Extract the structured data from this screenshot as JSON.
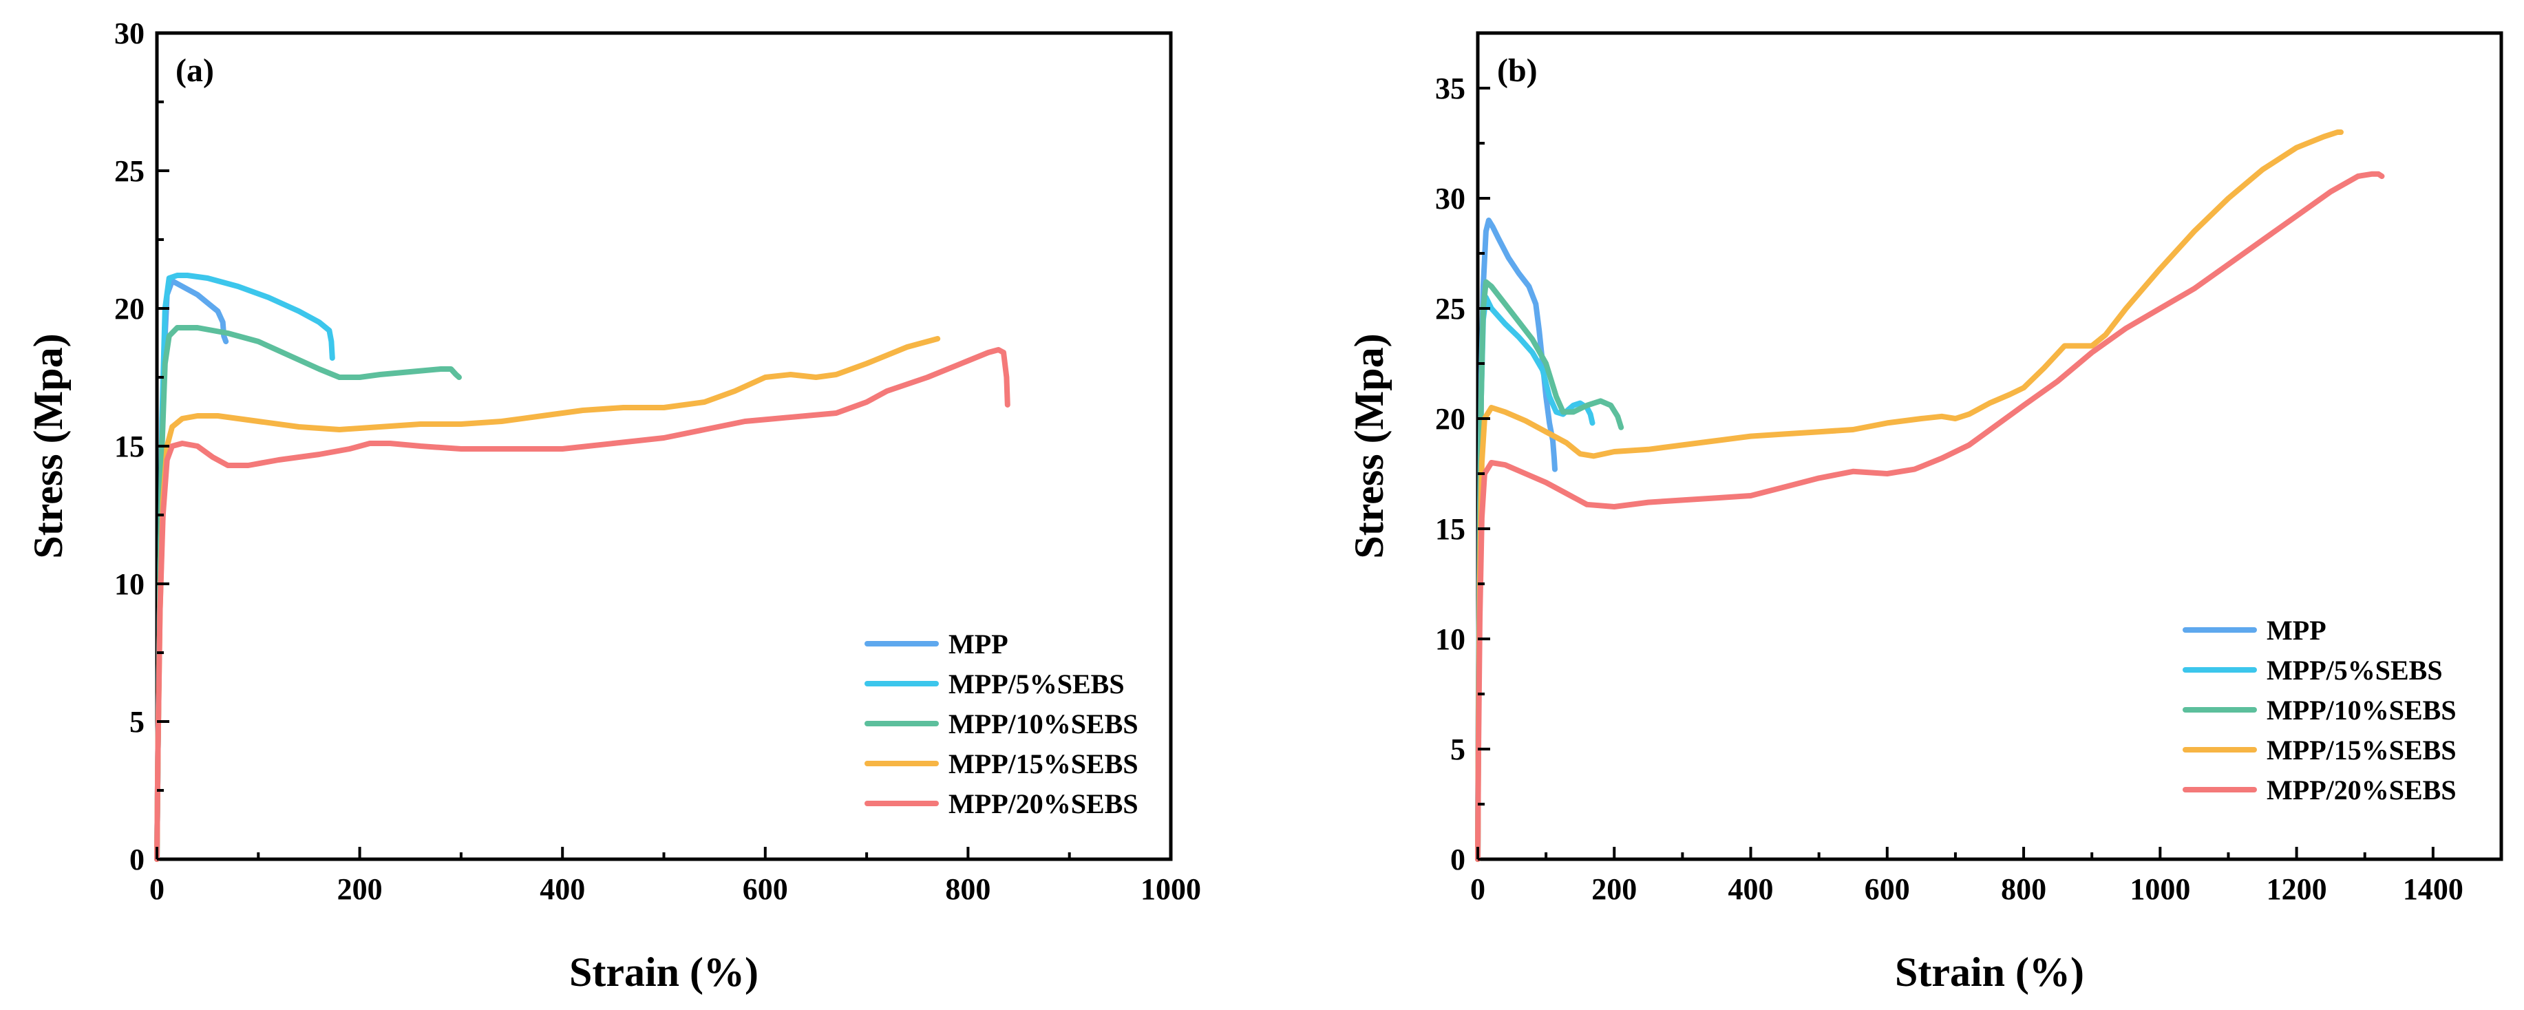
{
  "colors": {
    "MPP": "#5ea8ee",
    "MPP/5%SEBS": "#3cc6ec",
    "MPP/10%SEBS": "#5cbf9c",
    "MPP/15%SEBS": "#f7b544",
    "MPP/20%SEBS": "#f47979"
  },
  "chart_data": [
    {
      "type": "line",
      "panel_label": "(a)",
      "xlabel": "Strain (%)",
      "ylabel": "Stress (Mpa)",
      "xlim": [
        0,
        1000
      ],
      "ylim": [
        0,
        30
      ],
      "xticks": [
        0,
        200,
        400,
        600,
        800,
        1000
      ],
      "yticks": [
        0,
        5,
        10,
        15,
        20,
        25,
        30
      ],
      "legend_position": "bottom-right",
      "series": [
        {
          "name": "MPP",
          "x": [
            0,
            1,
            3,
            5,
            8,
            10,
            15,
            20,
            30,
            40,
            50,
            60,
            65,
            66,
            68
          ],
          "y": [
            0,
            4,
            10,
            15,
            19,
            20.5,
            21,
            20.9,
            20.7,
            20.5,
            20.2,
            19.9,
            19.5,
            19,
            18.8
          ]
        },
        {
          "name": "MPP/5%SEBS",
          "x": [
            0,
            1,
            3,
            5,
            8,
            12,
            20,
            30,
            50,
            80,
            110,
            140,
            160,
            170,
            172,
            173
          ],
          "y": [
            0,
            4,
            10,
            16,
            20,
            21.1,
            21.2,
            21.2,
            21.1,
            20.8,
            20.4,
            19.9,
            19.5,
            19.2,
            18.8,
            18.2
          ]
        },
        {
          "name": "MPP/10%SEBS",
          "x": [
            0,
            1,
            3,
            5,
            8,
            12,
            20,
            40,
            70,
            100,
            130,
            160,
            180,
            200,
            220,
            250,
            280,
            290,
            295,
            298
          ],
          "y": [
            0,
            4,
            10,
            15,
            18,
            19,
            19.3,
            19.3,
            19.1,
            18.8,
            18.3,
            17.8,
            17.5,
            17.5,
            17.6,
            17.7,
            17.8,
            17.8,
            17.6,
            17.5
          ]
        },
        {
          "name": "MPP/15%SEBS",
          "x": [
            0,
            1,
            3,
            6,
            10,
            15,
            25,
            40,
            60,
            100,
            140,
            180,
            220,
            260,
            300,
            340,
            380,
            420,
            460,
            500,
            540,
            570,
            600,
            625,
            650,
            670,
            700,
            740,
            760,
            770
          ],
          "y": [
            0,
            4,
            9,
            13,
            15,
            15.7,
            16,
            16.1,
            16.1,
            15.9,
            15.7,
            15.6,
            15.7,
            15.8,
            15.8,
            15.9,
            16.1,
            16.3,
            16.4,
            16.4,
            16.6,
            17,
            17.5,
            17.6,
            17.5,
            17.6,
            18,
            18.6,
            18.8,
            18.9
          ]
        },
        {
          "name": "MPP/20%SEBS",
          "x": [
            0,
            1,
            3,
            6,
            10,
            15,
            25,
            40,
            55,
            70,
            90,
            120,
            160,
            190,
            210,
            230,
            260,
            300,
            350,
            400,
            450,
            500,
            540,
            580,
            610,
            640,
            670,
            700,
            720,
            760,
            800,
            820,
            830,
            835,
            838,
            839
          ],
          "y": [
            0,
            4,
            9,
            12.5,
            14.5,
            15,
            15.1,
            15,
            14.6,
            14.3,
            14.3,
            14.5,
            14.7,
            14.9,
            15.1,
            15.1,
            15,
            14.9,
            14.9,
            14.9,
            15.1,
            15.3,
            15.6,
            15.9,
            16,
            16.1,
            16.2,
            16.6,
            17,
            17.5,
            18.1,
            18.4,
            18.5,
            18.4,
            17.5,
            16.5
          ]
        }
      ],
      "legend": [
        "MPP",
        "MPP/5%SEBS",
        "MPP/10%SEBS",
        "MPP/15%SEBS",
        "MPP/20%SEBS"
      ]
    },
    {
      "type": "line",
      "panel_label": "(b)",
      "xlabel": "Strain (%)",
      "ylabel": "Stress (Mpa)",
      "xlim": [
        0,
        1500
      ],
      "ylim": [
        0,
        37.5
      ],
      "xticks": [
        0,
        200,
        400,
        600,
        800,
        1000,
        1200,
        1400
      ],
      "yticks": [
        0,
        5,
        10,
        15,
        20,
        25,
        30,
        35
      ],
      "legend_position": "bottom-right",
      "series": [
        {
          "name": "MPP",
          "x": [
            0,
            1,
            3,
            5,
            8,
            12,
            16,
            22,
            30,
            45,
            60,
            75,
            85,
            90,
            95,
            100,
            105,
            110,
            112,
            113
          ],
          "y": [
            0,
            8,
            16,
            22,
            26,
            28.5,
            29,
            28.7,
            28.2,
            27.3,
            26.6,
            26,
            25.2,
            24,
            22.5,
            21,
            19.8,
            19,
            18.2,
            17.7
          ]
        },
        {
          "name": "MPP/5%SEBS",
          "x": [
            0,
            1,
            3,
            5,
            8,
            12,
            20,
            40,
            60,
            80,
            95,
            105,
            115,
            125,
            140,
            150,
            160,
            165,
            168
          ],
          "y": [
            0,
            7,
            15,
            21,
            24.5,
            25.5,
            25,
            24.3,
            23.7,
            23,
            22.2,
            21,
            20.3,
            20.2,
            20.6,
            20.7,
            20.5,
            20.2,
            19.8
          ]
        },
        {
          "name": "MPP/10%SEBS",
          "x": [
            0,
            1,
            3,
            5,
            8,
            12,
            20,
            40,
            60,
            80,
            100,
            115,
            125,
            140,
            160,
            180,
            195,
            205,
            210
          ],
          "y": [
            0,
            7,
            15,
            21,
            25,
            26.2,
            26,
            25.2,
            24.4,
            23.6,
            22.5,
            21,
            20.3,
            20.3,
            20.6,
            20.8,
            20.6,
            20.1,
            19.6
          ]
        },
        {
          "name": "MPP/15%SEBS",
          "x": [
            0,
            1,
            3,
            6,
            10,
            20,
            40,
            70,
            100,
            130,
            150,
            170,
            200,
            250,
            300,
            350,
            400,
            450,
            500,
            550,
            600,
            650,
            680,
            700,
            720,
            750,
            780,
            800,
            830,
            860,
            880,
            900,
            920,
            950,
            1000,
            1050,
            1100,
            1150,
            1200,
            1240,
            1260,
            1265
          ],
          "y": [
            0,
            6,
            13,
            18,
            20,
            20.5,
            20.3,
            19.9,
            19.4,
            18.9,
            18.4,
            18.3,
            18.5,
            18.6,
            18.8,
            19,
            19.2,
            19.3,
            19.4,
            19.5,
            19.8,
            20,
            20.1,
            20,
            20.2,
            20.7,
            21.1,
            21.4,
            22.3,
            23.3,
            23.3,
            23.3,
            23.8,
            25,
            26.8,
            28.5,
            30,
            31.3,
            32.3,
            32.8,
            33,
            33
          ]
        },
        {
          "name": "MPP/20%SEBS",
          "x": [
            0,
            1,
            3,
            6,
            10,
            20,
            40,
            70,
            100,
            130,
            160,
            200,
            250,
            300,
            350,
            400,
            450,
            500,
            550,
            600,
            640,
            680,
            720,
            760,
            800,
            850,
            900,
            950,
            1000,
            1050,
            1100,
            1150,
            1200,
            1250,
            1290,
            1310,
            1320,
            1325
          ],
          "y": [
            0,
            5,
            11,
            15.5,
            17.5,
            18,
            17.9,
            17.5,
            17.1,
            16.6,
            16.1,
            16,
            16.2,
            16.3,
            16.4,
            16.5,
            16.9,
            17.3,
            17.6,
            17.5,
            17.7,
            18.2,
            18.8,
            19.7,
            20.6,
            21.7,
            23,
            24.1,
            25,
            25.9,
            27,
            28.1,
            29.2,
            30.3,
            31,
            31.1,
            31.1,
            31
          ]
        }
      ],
      "legend": [
        "MPP",
        "MPP/5%SEBS",
        "MPP/10%SEBS",
        "MPP/15%SEBS",
        "MPP/20%SEBS"
      ]
    }
  ]
}
